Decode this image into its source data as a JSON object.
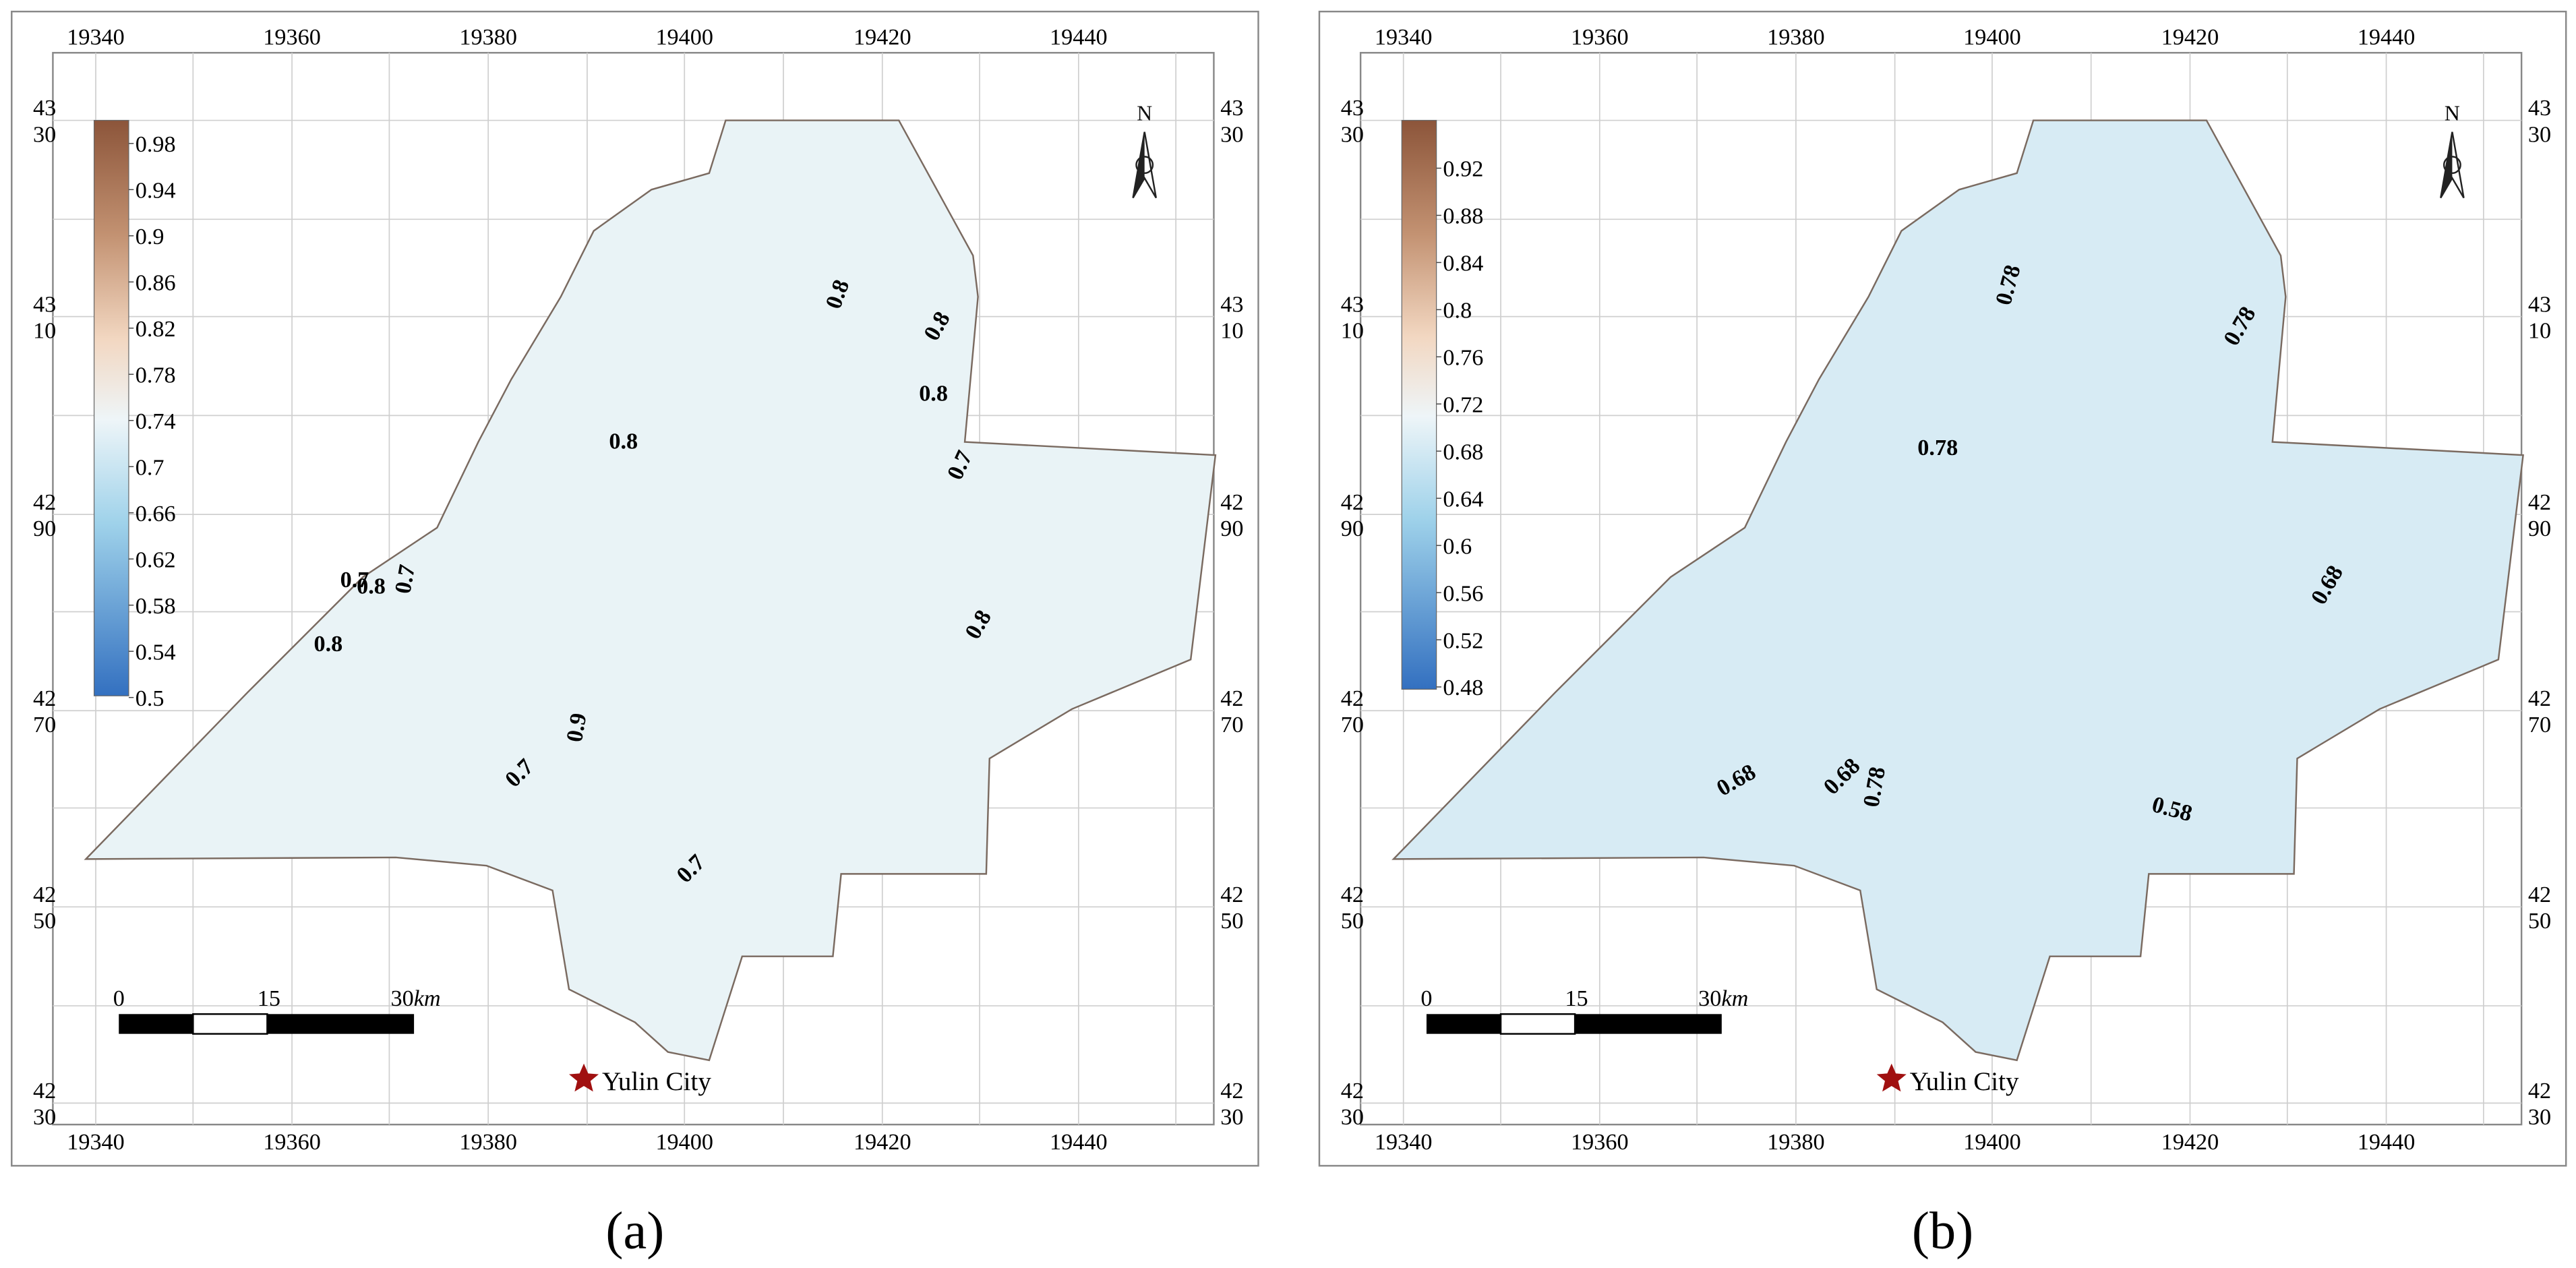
{
  "figure": {
    "panels": [
      {
        "label": "(a)",
        "x_ticks": [
          "19340",
          "19360",
          "19380",
          "19400",
          "19420",
          "19440"
        ],
        "y_ticks": [
          [
            "43",
            "30"
          ],
          [
            "43",
            "10"
          ],
          [
            "42",
            "90"
          ],
          [
            "42",
            "70"
          ],
          [
            "42",
            "50"
          ],
          [
            "42",
            "30"
          ]
        ],
        "colorbar": {
          "labels": [
            "0.98",
            "0.94",
            "0.9",
            "0.86",
            "0.82",
            "0.78",
            "0.74",
            "0.7",
            "0.66",
            "0.62",
            "0.58",
            "0.54",
            "0.5"
          ]
        },
        "contour_labels": [
          "0.8",
          "0.8",
          "0.8",
          "0.8",
          "0.8",
          "0.8",
          "0.8",
          "0.7",
          "0.7",
          "0.7",
          "0.9",
          "0.7",
          "0.7"
        ],
        "north": "N",
        "scale_bar": {
          "zero": "0",
          "mid": "15",
          "end": "30",
          "unit": "km"
        },
        "city": "Yulin City"
      },
      {
        "label": "(b)",
        "x_ticks": [
          "19340",
          "19360",
          "19380",
          "19400",
          "19420",
          "19440"
        ],
        "y_ticks": [
          [
            "43",
            "30"
          ],
          [
            "43",
            "10"
          ],
          [
            "42",
            "90"
          ],
          [
            "42",
            "70"
          ],
          [
            "42",
            "50"
          ],
          [
            "42",
            "30"
          ]
        ],
        "colorbar": {
          "labels": [
            "0.92",
            "0.88",
            "0.84",
            "0.8",
            "0.76",
            "0.72",
            "0.68",
            "0.64",
            "0.6",
            "0.56",
            "0.52",
            "0.48"
          ]
        },
        "contour_labels": [
          "0.78",
          "0.78",
          "0.78",
          "0.68",
          "0.68",
          "0.68",
          "0.78",
          "0.58"
        ],
        "north": "N",
        "scale_bar": {
          "zero": "0",
          "mid": "15",
          "end": "30",
          "unit": "km"
        },
        "city": "Yulin City"
      }
    ]
  }
}
